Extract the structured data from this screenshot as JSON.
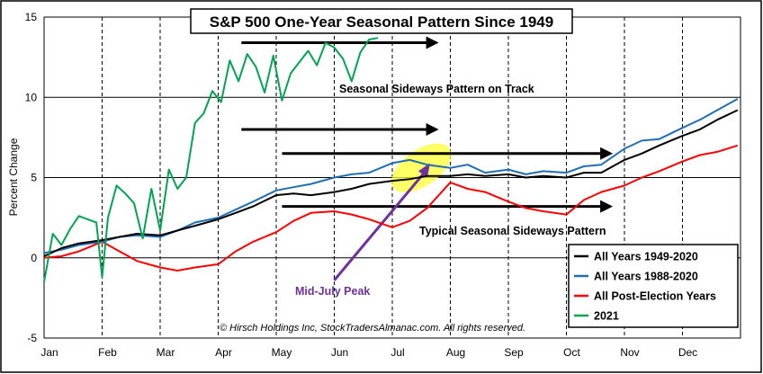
{
  "chart_data": {
    "type": "line",
    "title": "S&P 500 One-Year Seasonal Pattern Since 1949",
    "ylabel": "Percent Change",
    "xlabel": "",
    "ylim": [
      -5,
      15
    ],
    "yticks": [
      -5,
      0,
      5,
      10,
      15
    ],
    "months": [
      "Jan",
      "Feb",
      "Mar",
      "Apr",
      "May",
      "Jun",
      "Jul",
      "Aug",
      "Sep",
      "Oct",
      "Nov",
      "Dec"
    ],
    "grid": "vertical dashed at months, horizontal at 0/5/10",
    "legend_position": "bottom-right",
    "series": [
      {
        "name": "All Years 1949-2020",
        "color": "#000000",
        "x": [
          0,
          0.3,
          0.6,
          1,
          1.3,
          1.6,
          2,
          2.3,
          2.6,
          3,
          3.3,
          3.6,
          4,
          4.3,
          4.6,
          5,
          5.3,
          5.6,
          6,
          6.3,
          6.6,
          7,
          7.3,
          7.6,
          8,
          8.3,
          8.6,
          9,
          9.3,
          9.6,
          10,
          10.3,
          10.6,
          11,
          11.3,
          11.6,
          11.95
        ],
        "values": [
          0.1,
          0.6,
          0.9,
          1.1,
          1.3,
          1.5,
          1.4,
          1.7,
          2.0,
          2.4,
          2.8,
          3.2,
          3.9,
          4.0,
          3.9,
          4.1,
          4.3,
          4.6,
          4.8,
          4.9,
          5.1,
          5.1,
          5.2,
          5.1,
          5.2,
          5.0,
          5.1,
          5.0,
          5.3,
          5.3,
          6.1,
          6.5,
          7.0,
          7.6,
          8.0,
          8.6,
          9.2
        ]
      },
      {
        "name": "All Years 1988-2020",
        "color": "#1f6fb5",
        "x": [
          0,
          0.3,
          0.6,
          1,
          1.3,
          1.6,
          2,
          2.3,
          2.6,
          3,
          3.3,
          3.6,
          4,
          4.3,
          4.6,
          5,
          5.3,
          5.6,
          6,
          6.3,
          6.6,
          7,
          7.3,
          7.6,
          8,
          8.3,
          8.6,
          9,
          9.3,
          9.6,
          10,
          10.3,
          10.6,
          11,
          11.3,
          11.6,
          11.95
        ],
        "values": [
          0.3,
          0.5,
          0.8,
          1.0,
          1.3,
          1.4,
          1.3,
          1.7,
          2.2,
          2.5,
          3.0,
          3.5,
          4.2,
          4.4,
          4.6,
          5.0,
          5.2,
          5.3,
          5.9,
          6.1,
          5.8,
          5.6,
          5.8,
          5.3,
          5.5,
          5.2,
          5.4,
          5.3,
          5.7,
          5.8,
          6.8,
          7.3,
          7.4,
          8.1,
          8.6,
          9.2,
          9.9
        ]
      },
      {
        "name": "All Post-Election Years",
        "color": "#ff0000",
        "x": [
          0,
          0.3,
          0.6,
          1,
          1.3,
          1.6,
          2,
          2.3,
          2.6,
          3,
          3.3,
          3.6,
          4,
          4.3,
          4.6,
          5,
          5.3,
          5.6,
          6,
          6.3,
          6.6,
          7,
          7.3,
          7.6,
          8,
          8.3,
          8.6,
          9,
          9.3,
          9.6,
          10,
          10.3,
          10.6,
          11,
          11.3,
          11.6,
          11.95
        ],
        "values": [
          0.0,
          0.1,
          0.4,
          1.0,
          0.4,
          -0.2,
          -0.6,
          -0.8,
          -0.6,
          -0.4,
          0.4,
          1.0,
          1.6,
          2.3,
          2.8,
          2.9,
          2.7,
          2.4,
          1.9,
          2.3,
          3.1,
          4.7,
          4.3,
          4.1,
          3.5,
          3.1,
          2.9,
          2.7,
          3.6,
          4.1,
          4.5,
          5.0,
          5.4,
          6.0,
          6.4,
          6.6,
          7.0
        ]
      },
      {
        "name": "2021",
        "color": "#00a550",
        "x": [
          0,
          0.15,
          0.3,
          0.45,
          0.6,
          0.75,
          0.9,
          1.0,
          1.1,
          1.25,
          1.4,
          1.55,
          1.7,
          1.85,
          2.0,
          2.15,
          2.3,
          2.45,
          2.6,
          2.75,
          2.9,
          3.05,
          3.2,
          3.35,
          3.5,
          3.65,
          3.8,
          3.95,
          4.1,
          4.25,
          4.4,
          4.55,
          4.7,
          4.85,
          5.0,
          5.15,
          5.3,
          5.45,
          5.6,
          5.75
        ],
        "values": [
          -1.5,
          1.5,
          0.8,
          1.8,
          2.6,
          2.4,
          2.2,
          -1.2,
          2.5,
          4.5,
          4.0,
          3.4,
          1.2,
          4.3,
          1.7,
          5.5,
          4.3,
          5.0,
          8.4,
          9.0,
          10.4,
          9.7,
          12.3,
          11.0,
          12.7,
          11.9,
          10.3,
          12.6,
          9.8,
          11.5,
          12.2,
          12.9,
          12.0,
          13.4,
          13.1,
          12.4,
          11.0,
          12.8,
          13.6,
          13.7
        ]
      }
    ],
    "annotations": [
      {
        "text": "Seasonal Sideways Pattern on Track",
        "x": 5.0,
        "y": 10.5
      },
      {
        "text": "Typical Seasonal Sideways Pattern",
        "x": 6.4,
        "y": 1.5
      },
      {
        "text": "Mid-July Peak",
        "x": 4.2,
        "y": -2.5
      },
      {
        "text": "© Hirsch Holdings Inc, StockTradersAlmanac.com. All rights reserved.",
        "x": 4.4,
        "y": -4.4
      }
    ],
    "arrows": [
      {
        "from": [
          3.4,
          13.4
        ],
        "to": [
          6.8,
          13.4
        ]
      },
      {
        "from": [
          3.4,
          8.0
        ],
        "to": [
          6.8,
          8.0
        ]
      },
      {
        "from": [
          4.1,
          6.5
        ],
        "to": [
          9.8,
          6.5
        ]
      },
      {
        "from": [
          4.1,
          3.2
        ],
        "to": [
          9.8,
          3.2
        ]
      }
    ]
  }
}
